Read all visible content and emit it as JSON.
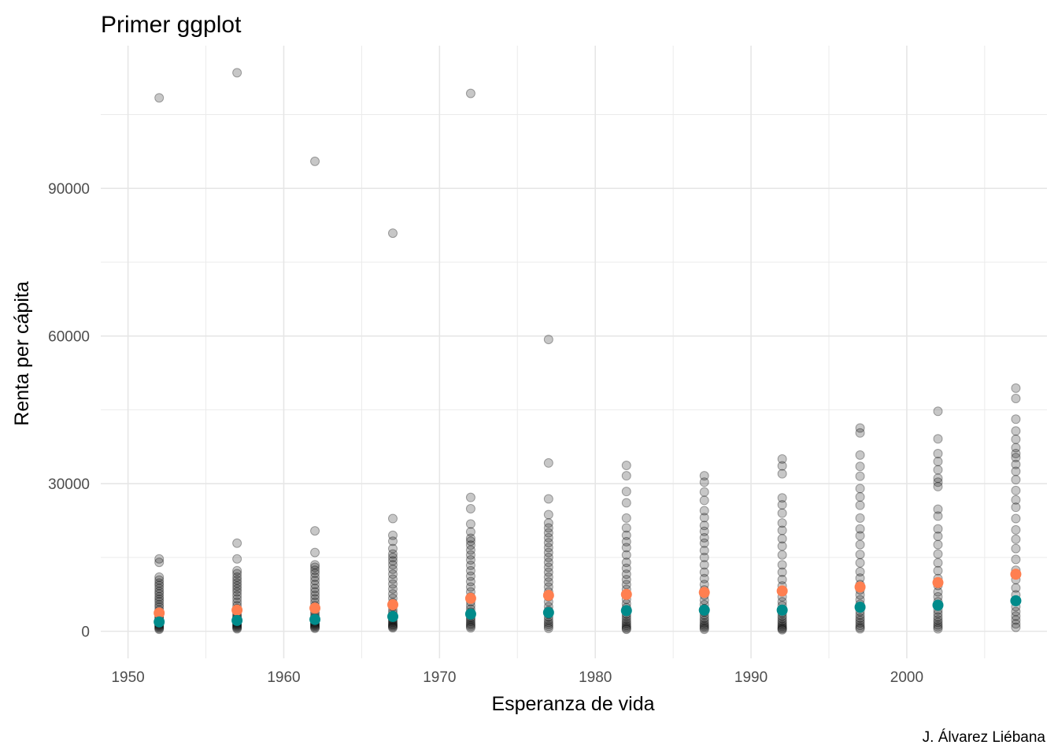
{
  "chart_data": {
    "type": "scatter",
    "title": "Primer ggplot",
    "xlabel": "Esperanza de vida",
    "ylabel": "Renta per cápita",
    "caption": "J. Álvarez Liébana",
    "xlim": [
      1948.25,
      2009.0
    ],
    "ylim": [
      -5500,
      119000
    ],
    "x_ticks": [
      1950,
      1960,
      1970,
      1980,
      1990,
      2000
    ],
    "y_ticks": [
      0,
      30000,
      60000,
      90000
    ],
    "grid": true,
    "legend": "none",
    "point_color": "#000000",
    "point_alpha": 0.22,
    "years": [
      1952,
      1957,
      1962,
      1967,
      1972,
      1977,
      1982,
      1987,
      1992,
      1997,
      2002,
      2007
    ],
    "points": [
      {
        "x": 1952,
        "values": [
          108400,
          14700,
          14000,
          11000,
          10400,
          9800,
          9300,
          8700,
          8100,
          7600,
          7000,
          6500,
          6000,
          5400,
          4900,
          4300,
          3800,
          3300,
          2900,
          2600,
          2300,
          2000,
          1800,
          1600,
          1400,
          1200,
          1000,
          800,
          600,
          400
        ]
      },
      {
        "x": 1957,
        "values": [
          113500,
          17900,
          14700,
          12300,
          11700,
          11000,
          10400,
          9800,
          9200,
          8600,
          8000,
          7300,
          6600,
          5900,
          5200,
          4600,
          4000,
          3500,
          3100,
          2800,
          2500,
          2200,
          1900,
          1700,
          1500,
          1300,
          1100,
          900,
          700,
          500
        ]
      },
      {
        "x": 1962,
        "values": [
          95500,
          20400,
          16000,
          13500,
          13000,
          12400,
          11800,
          11000,
          10300,
          9500,
          8700,
          8000,
          7300,
          6600,
          5900,
          5200,
          4600,
          4000,
          3500,
          3000,
          2700,
          2400,
          2100,
          1800,
          1600,
          1400,
          1200,
          1000,
          800,
          600
        ]
      },
      {
        "x": 1967,
        "values": [
          80900,
          22900,
          19500,
          18300,
          16800,
          15700,
          15000,
          14300,
          13500,
          12600,
          11600,
          10600,
          9600,
          8600,
          7600,
          6700,
          5800,
          5000,
          4300,
          3700,
          3200,
          2800,
          2400,
          2100,
          1800,
          1500,
          1300,
          1100,
          900,
          700
        ]
      },
      {
        "x": 1972,
        "values": [
          109300,
          27200,
          24900,
          21800,
          20200,
          18900,
          18300,
          17500,
          16500,
          15500,
          14500,
          13400,
          12300,
          11200,
          10100,
          9000,
          8000,
          7000,
          6000,
          5200,
          4500,
          3900,
          3300,
          2800,
          2400,
          2000,
          1600,
          1300,
          1000,
          700
        ]
      },
      {
        "x": 1977,
        "values": [
          59300,
          34200,
          26900,
          23700,
          22000,
          21000,
          20000,
          19000,
          18000,
          17000,
          16000,
          15000,
          14000,
          13000,
          12000,
          11000,
          10000,
          9000,
          8000,
          7000,
          6000,
          5000,
          4200,
          3500,
          2900,
          2300,
          1800,
          1400,
          1000,
          600
        ]
      },
      {
        "x": 1982,
        "values": [
          33700,
          31600,
          28400,
          26100,
          23000,
          21000,
          19500,
          18200,
          17000,
          15500,
          14000,
          12800,
          11600,
          10500,
          9500,
          8500,
          7500,
          6500,
          5600,
          4800,
          4100,
          3500,
          3000,
          2500,
          2000,
          1600,
          1200,
          900,
          600,
          400
        ]
      },
      {
        "x": 1987,
        "values": [
          31600,
          30300,
          28300,
          26600,
          24500,
          23100,
          21500,
          20300,
          19000,
          17900,
          16400,
          15000,
          13500,
          12000,
          10700,
          9500,
          8400,
          7300,
          6300,
          5400,
          4600,
          3900,
          3300,
          2700,
          2200,
          1700,
          1300,
          1000,
          700,
          400
        ]
      },
      {
        "x": 1992,
        "values": [
          35000,
          33600,
          32000,
          27100,
          25700,
          24000,
          22000,
          20500,
          18800,
          17300,
          15500,
          13500,
          12000,
          10500,
          9200,
          8000,
          7000,
          6000,
          5200,
          4400,
          3700,
          3100,
          2600,
          2100,
          1700,
          1300,
          1000,
          700,
          500,
          300
        ]
      },
      {
        "x": 1997,
        "values": [
          41300,
          40300,
          35800,
          33500,
          31500,
          29000,
          27300,
          25600,
          23000,
          20800,
          19400,
          17600,
          15600,
          13900,
          12100,
          10800,
          9500,
          8400,
          7400,
          6400,
          5500,
          4700,
          4000,
          3300,
          2700,
          2200,
          1700,
          1200,
          800,
          500
        ]
      },
      {
        "x": 2002,
        "values": [
          44700,
          39100,
          36100,
          34500,
          32800,
          31100,
          30300,
          29400,
          24800,
          23400,
          20800,
          19300,
          17600,
          15700,
          13900,
          12300,
          10700,
          9300,
          8000,
          7000,
          6000,
          5100,
          4300,
          3600,
          2900,
          2300,
          1800,
          1300,
          900,
          500
        ]
      },
      {
        "x": 2007,
        "values": [
          49400,
          47300,
          43100,
          40700,
          39000,
          37300,
          36100,
          35300,
          33900,
          32500,
          30800,
          28600,
          26700,
          25200,
          22900,
          20600,
          18700,
          16800,
          14600,
          12400,
          10500,
          8800,
          7400,
          6100,
          5000,
          4000,
          3100,
          2300,
          1500,
          800
        ]
      }
    ],
    "series": [
      {
        "name": "",
        "color": "#ff7f50",
        "values": [
          3700,
          4300,
          4700,
          5400,
          6700,
          7300,
          7500,
          7900,
          8200,
          9000,
          9900,
          11600
        ]
      },
      {
        "name": "",
        "color": "#008b8b",
        "values": [
          1900,
          2200,
          2400,
          3000,
          3500,
          3800,
          4200,
          4300,
          4300,
          4900,
          5300,
          6200
        ]
      }
    ]
  }
}
